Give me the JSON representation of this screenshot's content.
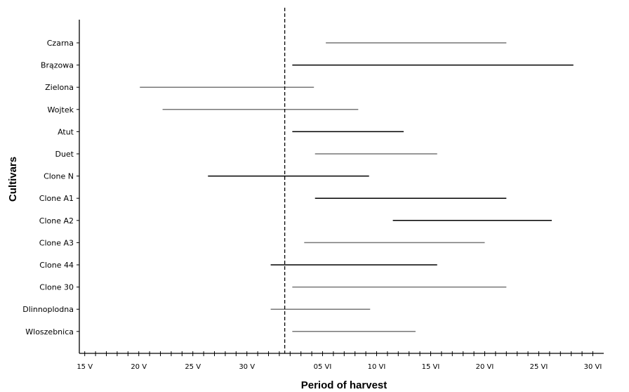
{
  "chart_data": {
    "type": "range",
    "xlabel": "Period of harvest",
    "ylabel": "Cultivars",
    "x_unit": "days since 1 May",
    "xlim": [
      14.5,
      63
    ],
    "x_ticks": [
      {
        "value": 15,
        "label": "15 V"
      },
      {
        "value": 20,
        "label": "20 V"
      },
      {
        "value": 25,
        "label": "25 V"
      },
      {
        "value": 30,
        "label": "30 V"
      },
      {
        "value": 37,
        "label": "05 VI"
      },
      {
        "value": 42,
        "label": "10 VI"
      },
      {
        "value": 47,
        "label": "15 VI"
      },
      {
        "value": 52,
        "label": "20 VI"
      },
      {
        "value": 57,
        "label": "25 VI"
      },
      {
        "value": 62,
        "label": "30 VI"
      }
    ],
    "reference_line": {
      "value": 33.5,
      "style": "dashed"
    },
    "series": [
      {
        "cultivar": "Czarna",
        "start": 37.3,
        "end": 54.0,
        "color": "#777777"
      },
      {
        "cultivar": "Brązowa",
        "start": 34.2,
        "end": 60.2,
        "color": "#000000"
      },
      {
        "cultivar": "Zielona",
        "start": 20.1,
        "end": 36.2,
        "color": "#777777"
      },
      {
        "cultivar": "Wojtek",
        "start": 22.2,
        "end": 40.3,
        "color": "#777777"
      },
      {
        "cultivar": "Atut",
        "start": 34.2,
        "end": 44.5,
        "color": "#000000"
      },
      {
        "cultivar": "Duet",
        "start": 36.3,
        "end": 47.6,
        "color": "#777777"
      },
      {
        "cultivar": "Clone N",
        "start": 26.4,
        "end": 41.3,
        "color": "#000000"
      },
      {
        "cultivar": "Clone A1",
        "start": 36.3,
        "end": 54.0,
        "color": "#000000"
      },
      {
        "cultivar": "Clone A2",
        "start": 43.5,
        "end": 58.2,
        "color": "#000000"
      },
      {
        "cultivar": "Clone A3",
        "start": 35.3,
        "end": 52.0,
        "color": "#777777"
      },
      {
        "cultivar": "Clone 44",
        "start": 32.2,
        "end": 47.6,
        "color": "#000000"
      },
      {
        "cultivar": "Clone 30",
        "start": 34.2,
        "end": 54.0,
        "color": "#777777"
      },
      {
        "cultivar": "Dlinnoplodna",
        "start": 32.2,
        "end": 41.4,
        "color": "#777777"
      },
      {
        "cultivar": "Wloszebnica",
        "start": 34.2,
        "end": 45.6,
        "color": "#777777"
      }
    ]
  }
}
